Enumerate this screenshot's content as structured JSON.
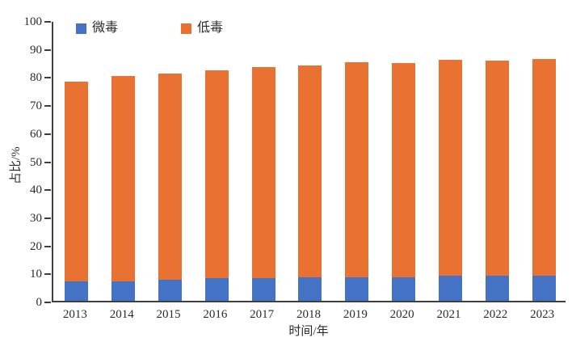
{
  "chart_data": {
    "type": "bar",
    "stacked": true,
    "title": "",
    "xlabel": "时间/年",
    "ylabel": "占比/%",
    "categories": [
      "2013",
      "2014",
      "2015",
      "2016",
      "2017",
      "2018",
      "2019",
      "2020",
      "2021",
      "2022",
      "2023"
    ],
    "series": [
      {
        "name": "微毒",
        "color": "#4472c4",
        "values": [
          7.0,
          7.0,
          7.5,
          8.0,
          8.0,
          8.4,
          8.4,
          8.4,
          8.8,
          8.8,
          8.8
        ]
      },
      {
        "name": "低毒",
        "color": "#e97132",
        "values": [
          71.0,
          73.0,
          73.5,
          74.0,
          75.3,
          75.6,
          76.5,
          76.4,
          77.0,
          76.9,
          77.5
        ]
      }
    ],
    "stack_totals": [
      78.0,
      80.0,
      81.0,
      82.0,
      83.3,
      84.0,
      84.9,
      84.8,
      85.8,
      85.7,
      86.3
    ],
    "ylim": [
      0,
      100
    ],
    "yticks": [
      0,
      10,
      20,
      30,
      40,
      50,
      60,
      70,
      80,
      90,
      100
    ],
    "grid": false,
    "legend_position": "top-left-inside",
    "axis_color": "#3f3f3f",
    "text_color": "#2b2b2b",
    "background_color": "#ffffff"
  }
}
